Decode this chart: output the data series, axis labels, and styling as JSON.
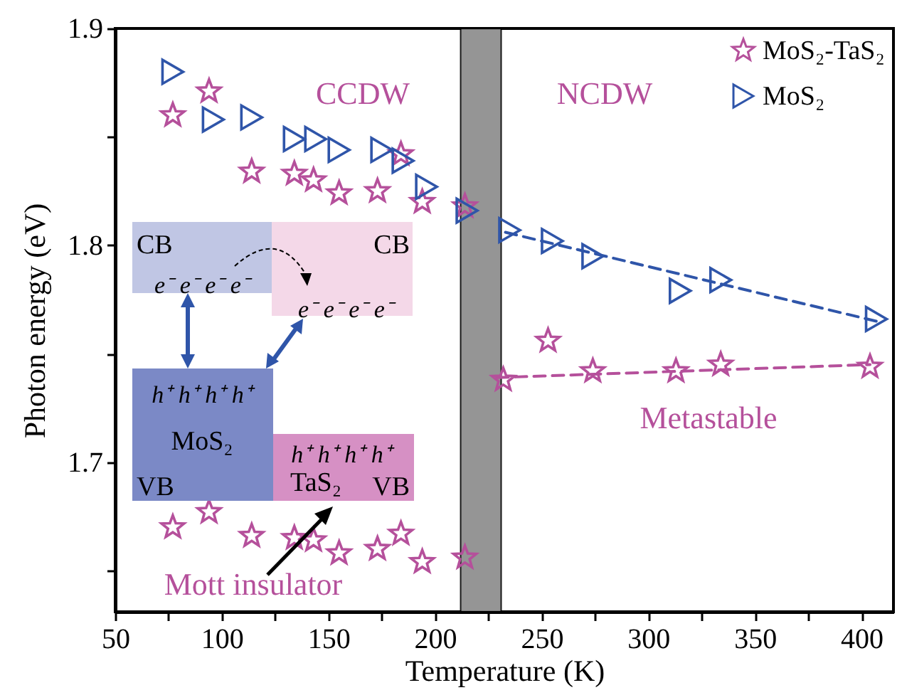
{
  "chart_data": {
    "type": "scatter",
    "xlabel": "Temperature (K)",
    "ylabel": "Photon energy (eV)",
    "xlim": [
      50,
      415
    ],
    "ylim": [
      1.631,
      1.9
    ],
    "xticks": [
      50,
      {
        "value": 75,
        "label": null
      },
      100,
      {
        "value": 125,
        "label": null
      },
      150,
      {
        "value": 175,
        "label": null
      },
      200,
      {
        "value": 225,
        "label": null
      },
      250,
      {
        "value": 275,
        "label": null
      },
      300,
      {
        "value": 325,
        "label": null
      },
      350,
      {
        "value": 375,
        "label": null
      },
      400
    ],
    "yticks": [
      {
        "value": 1.65,
        "label": null
      },
      1.7,
      {
        "value": 1.75,
        "label": null
      },
      1.8,
      {
        "value": 1.85,
        "label": null
      },
      1.9
    ],
    "grid": false,
    "legend": "top right",
    "series": [
      {
        "name": "MoS₂-TaS₂",
        "type": "scatter",
        "marker": "star",
        "color": "#b5509b",
        "x": [
          77,
          94,
          114,
          134,
          143,
          155,
          173,
          184,
          194,
          214,
          253,
          232,
          274,
          313,
          334,
          404,
          77,
          94,
          114,
          134,
          143,
          155,
          173,
          184,
          194,
          214
        ],
        "values": [
          1.86,
          1.871,
          1.834,
          1.833,
          1.83,
          1.824,
          1.825,
          1.842,
          1.82,
          1.818,
          1.756,
          1.738,
          1.742,
          1.742,
          1.745,
          1.744,
          1.67,
          1.677,
          1.666,
          1.665,
          1.664,
          1.658,
          1.66,
          1.667,
          1.654,
          1.656
        ]
      },
      {
        "name": "MoS₂",
        "type": "scatter",
        "marker": "triangle",
        "color": "#2f55a9",
        "x": [
          77,
          96,
          114,
          134,
          144,
          155,
          175,
          185,
          196,
          215,
          235,
          255,
          274,
          315,
          334,
          407
        ],
        "values": [
          1.88,
          1.858,
          1.859,
          1.849,
          1.849,
          1.844,
          1.844,
          1.839,
          1.827,
          1.816,
          1.807,
          1.802,
          1.795,
          1.779,
          1.784,
          1.766
        ]
      },
      {
        "type": "line",
        "line_style": "dashed",
        "color": "#2f55a9",
        "x": [
          233,
          407
        ],
        "values": [
          1.806,
          1.765
        ]
      },
      {
        "type": "line",
        "line_style": "dashed",
        "color": "#b5509b",
        "x": [
          229,
          404
        ],
        "values": [
          1.739,
          1.745
        ]
      }
    ],
    "bands": [
      {
        "axis": "x",
        "from": 212,
        "to": 231,
        "color": "#8a8a8a"
      }
    ],
    "annotations": [
      "CCDW",
      "NCDW",
      "Metastable",
      "Mott insulator",
      "CB",
      "e⁻ e⁻ e⁻ e⁻",
      "CB",
      "e⁻ e⁻ e⁻ e⁻",
      "h⁺ h⁺ h⁺ h⁺",
      "MoS₂",
      "VB",
      "h⁺ h⁺ h⁺ h⁺",
      "TaS₂",
      "VB"
    ]
  }
}
